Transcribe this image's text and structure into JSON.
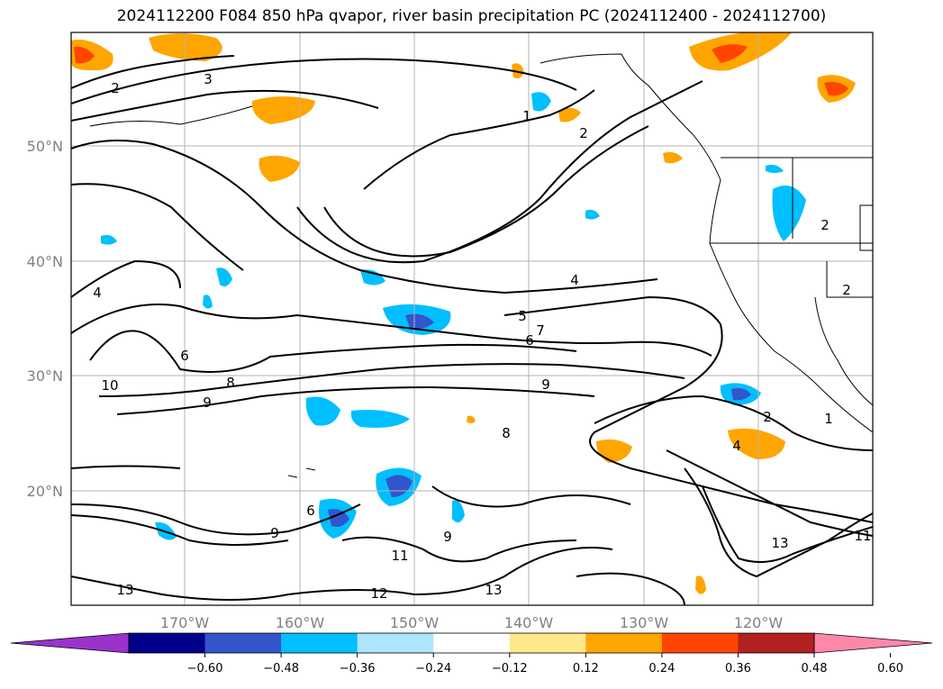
{
  "title": "2024112200 F084 850 hPa qvapor, river basin precipitation PC (2024112400 - 2024112700)",
  "map": {
    "lon_ticks": [
      "170°W",
      "160°W",
      "150°W",
      "140°W",
      "130°W",
      "120°W"
    ],
    "lat_ticks": [
      "50°N",
      "40°N",
      "30°N",
      "20°N"
    ],
    "grid": true,
    "contour_labels": [
      "2",
      "3",
      "1",
      "2",
      "4",
      "5",
      "6",
      "7",
      "6",
      "8",
      "9",
      "10",
      "4",
      "9",
      "8",
      "2",
      "1",
      "4",
      "6",
      "9",
      "13",
      "12",
      "13",
      "11",
      "9",
      "11",
      "13",
      "2",
      "2"
    ]
  },
  "colorbar": {
    "ticks": [
      "−0.60",
      "−0.48",
      "−0.36",
      "−0.24",
      "−0.12",
      "0.12",
      "0.24",
      "0.36",
      "0.48",
      "0.60"
    ],
    "colors": [
      "#9933cc",
      "#00008b",
      "#3355cc",
      "#00bfff",
      "#aee4ff",
      "#ffffff",
      "#ffe88a",
      "#ffa500",
      "#ff4500",
      "#b22222",
      "#ff88aa"
    ],
    "extend": "both"
  }
}
